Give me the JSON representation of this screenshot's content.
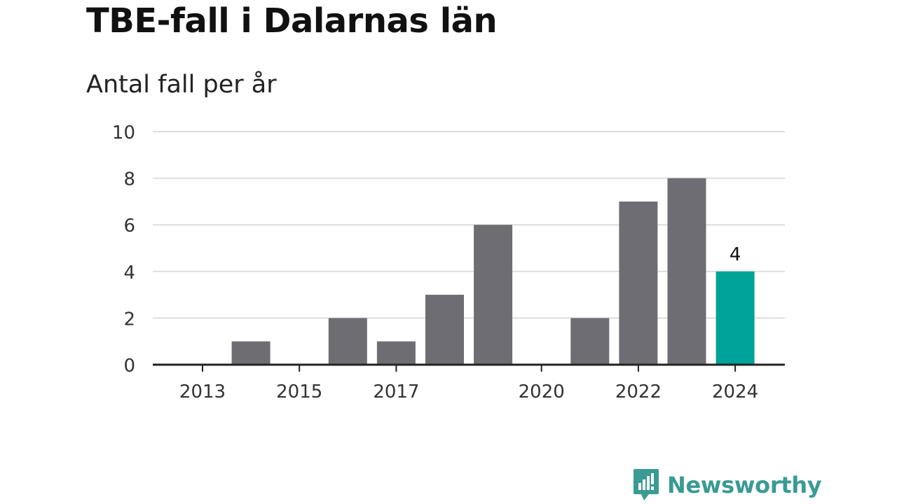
{
  "title": "TBE-fall i Dalarnas län",
  "subtitle": "Antal fall per år",
  "brand": {
    "name": "Newsworthy",
    "color": "#3a9a94",
    "icon": "newsworthy-logo-icon"
  },
  "colors": {
    "bar": "#6e6d73",
    "highlight": "#00a398",
    "grid": "#dddddd",
    "axis": "#222222"
  },
  "chart_data": {
    "type": "bar",
    "categories": [
      2013,
      2014,
      2015,
      2016,
      2017,
      2018,
      2019,
      2020,
      2021,
      2022,
      2023,
      2024
    ],
    "values": [
      0,
      1,
      0,
      2,
      1,
      3,
      6,
      0,
      2,
      7,
      8,
      4
    ],
    "highlight_index": 11,
    "data_labels": [
      {
        "index": 11,
        "text": "4"
      }
    ],
    "x_tick_labels": [
      "2013",
      "2015",
      "2017",
      "2020",
      "2022",
      "2024"
    ],
    "y_ticks": [
      0,
      2,
      4,
      6,
      8,
      10
    ],
    "ylim": [
      0,
      10
    ],
    "grid": true,
    "legend": "none",
    "xlabel": "",
    "ylabel": ""
  }
}
